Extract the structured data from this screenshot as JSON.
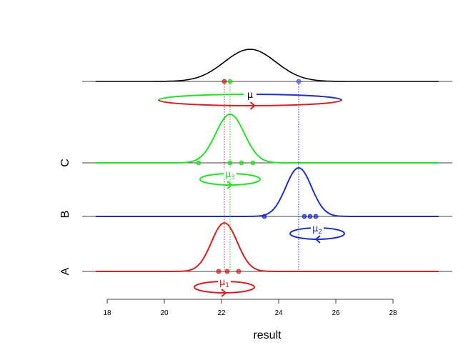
{
  "chart_data": {
    "type": "line",
    "xlabel": "result",
    "xlim": [
      17.6,
      29.6
    ],
    "x_ticks": [
      18,
      20,
      22,
      24,
      26,
      28
    ],
    "rows": [
      {
        "name": "A",
        "color": "#d62020",
        "mean": 22.1,
        "sd": 0.45,
        "amplitude": 68,
        "points": [
          21.9,
          22.2,
          22.6
        ],
        "loop": {
          "label": "μ",
          "sub": "1",
          "center_x": 22.1,
          "half_width": 1.05,
          "arrow": "right"
        }
      },
      {
        "name": "B",
        "color": "#2030c0",
        "mean": 24.7,
        "sd": 0.45,
        "amplitude": 68,
        "points": [
          23.5,
          24.9,
          25.1,
          25.3
        ],
        "loop": {
          "label": "μ",
          "sub": "2",
          "center_x": 25.35,
          "half_width": 0.95,
          "arrow": "left"
        }
      },
      {
        "name": "C",
        "color": "#22e022",
        "mean": 22.3,
        "sd": 0.5,
        "amplitude": 68,
        "points": [
          21.2,
          22.3,
          22.7,
          23.1
        ],
        "loop": {
          "label": "μ",
          "sub": "3",
          "center_x": 22.3,
          "half_width": 1.05,
          "arrow": "right"
        }
      }
    ],
    "overall": {
      "color": "#000000",
      "mean": 23.0,
      "sd": 0.9,
      "amplitude": 45,
      "points": [
        {
          "x": 22.1,
          "color": "#d62020"
        },
        {
          "x": 22.3,
          "color": "#22e022"
        },
        {
          "x": 24.7,
          "color": "#5060d0"
        }
      ],
      "loop": {
        "label": "μ",
        "sub": "",
        "center_x": 23.0,
        "half_width": 3.2,
        "arrow": "right"
      }
    },
    "reference_lines": [
      {
        "x": 22.1,
        "color": "#d62020"
      },
      {
        "x": 22.3,
        "color": "#22c022"
      },
      {
        "x": 24.7,
        "color": "#2030c0"
      }
    ]
  }
}
